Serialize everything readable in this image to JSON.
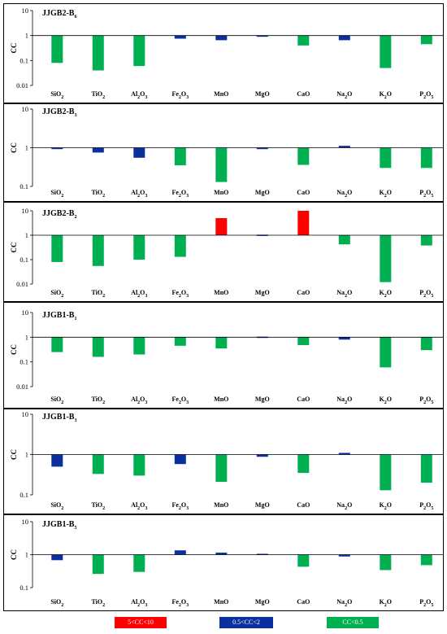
{
  "colors": {
    "red": "#ff0000",
    "blue": "#0a2f9e",
    "green": "#00b050"
  },
  "legend": [
    {
      "label": "5<CC<10",
      "color": "#ff0000"
    },
    {
      "label": "0.5<CC<2",
      "color": "#0a2f9e"
    },
    {
      "label": "CC<0.5",
      "color": "#00b050"
    }
  ],
  "chart_data": [
    {
      "type": "bar",
      "title": "JJGB2-B6",
      "ylabel": "CC",
      "yscale": "log",
      "ylim": [
        0.01,
        10
      ],
      "yticks": [
        "10",
        "1",
        "0.1",
        "0.01"
      ],
      "categories": [
        "SiO2",
        "TiO2",
        "Al2O3",
        "Fe2O3",
        "MnO",
        "MgO",
        "CaO",
        "Na2O",
        "K2O",
        "P2O5"
      ],
      "values": [
        0.08,
        0.04,
        0.06,
        0.75,
        0.65,
        0.95,
        0.4,
        0.65,
        0.05,
        0.45
      ]
    },
    {
      "type": "bar",
      "title": "JJGB2-B3",
      "ylabel": "CC",
      "yscale": "log",
      "ylim": [
        0.1,
        10
      ],
      "yticks": [
        "10",
        "1",
        "0.1"
      ],
      "categories": [
        "SiO2",
        "TiO2",
        "Al2O3",
        "Fe2O3",
        "MnO",
        "MgO",
        "CaO",
        "Na2O",
        "K2O",
        "P2O5"
      ],
      "values": [
        0.92,
        0.75,
        0.55,
        0.35,
        0.13,
        0.92,
        0.36,
        1.12,
        0.3,
        0.3
      ]
    },
    {
      "type": "bar",
      "title": "JJGB2-B2",
      "ylabel": "CC",
      "yscale": "log",
      "ylim": [
        0.01,
        10
      ],
      "yticks": [
        "10",
        "1",
        "0.1",
        "0.01"
      ],
      "categories": [
        "SiO2",
        "TiO2",
        "Al2O3",
        "Fe2O3",
        "MnO",
        "MgO",
        "CaO",
        "Na2O",
        "K2O",
        "P2O5"
      ],
      "values": [
        0.08,
        0.055,
        0.1,
        0.13,
        5.0,
        1.05,
        10.0,
        0.42,
        0.012,
        0.38
      ]
    },
    {
      "type": "bar",
      "title": "JJGB1-B1",
      "ylabel": "CC",
      "yscale": "log",
      "ylim": [
        0.01,
        10
      ],
      "yticks": [
        "10",
        "1",
        "0.1",
        "0.01"
      ],
      "categories": [
        "SiO2",
        "TiO2",
        "Al2O3",
        "Fe2O3",
        "MnO",
        "MgO",
        "CaO",
        "Na2O",
        "K2O",
        "P2O5"
      ],
      "values": [
        0.25,
        0.16,
        0.2,
        0.45,
        0.35,
        1.05,
        0.48,
        0.8,
        0.06,
        0.3
      ]
    },
    {
      "type": "bar",
      "title": "JJGB1-B3",
      "ylabel": "CC",
      "yscale": "log",
      "ylim": [
        0.1,
        10
      ],
      "yticks": [
        "10",
        "1",
        "0.1"
      ],
      "categories": [
        "SiO2",
        "TiO2",
        "Al2O3",
        "Fe2O3",
        "MnO",
        "MgO",
        "CaO",
        "Na2O",
        "K2O",
        "P2O5"
      ],
      "values": [
        0.5,
        0.33,
        0.3,
        0.58,
        0.21,
        0.88,
        0.35,
        1.1,
        0.13,
        0.2
      ]
    },
    {
      "type": "bar",
      "title": "JJGB1-B5",
      "ylabel": "CC",
      "yscale": "log",
      "ylim": [
        0.1,
        10
      ],
      "yticks": [
        "10",
        "1",
        "0.1"
      ],
      "categories": [
        "SiO2",
        "TiO2",
        "Al2O3",
        "Fe2O3",
        "MnO",
        "MgO",
        "CaO",
        "Na2O",
        "K2O",
        "P2O5"
      ],
      "values": [
        0.68,
        0.26,
        0.3,
        1.35,
        1.15,
        1.06,
        0.43,
        0.88,
        0.34,
        0.48
      ]
    }
  ]
}
